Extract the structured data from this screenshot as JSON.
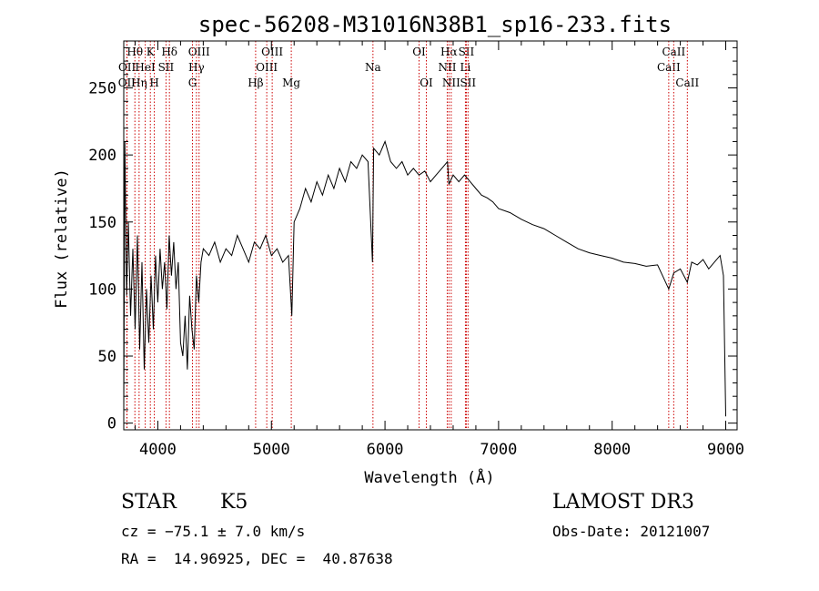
{
  "chart_data": {
    "type": "line",
    "title": "spec-56208-M31016N38B1_sp16-233.fits",
    "xlabel": "Wavelength (Å)",
    "ylabel": "Flux (relative)",
    "xlim": [
      3700,
      9100
    ],
    "ylim": [
      -5,
      285
    ],
    "x_ticks": [
      4000,
      5000,
      6000,
      7000,
      8000,
      9000
    ],
    "y_ticks": [
      0,
      50,
      100,
      150,
      200,
      250
    ],
    "grid": false,
    "line_color": "#000000",
    "marker_color": "#cc0000",
    "series": [
      {
        "x": [
          3700,
          3710,
          3725,
          3740,
          3760,
          3780,
          3800,
          3820,
          3840,
          3860,
          3880,
          3900,
          3920,
          3940,
          3960,
          3980,
          4000,
          4020,
          4040,
          4060,
          4080,
          4100,
          4120,
          4140,
          4160,
          4180,
          4200,
          4220,
          4240,
          4260,
          4280,
          4300,
          4320,
          4340,
          4360,
          4380,
          4400,
          4450,
          4500,
          4550,
          4600,
          4650,
          4700,
          4750,
          4800,
          4850,
          4900,
          4950,
          5000,
          5050,
          5100,
          5150,
          5180,
          5200,
          5250,
          5300,
          5350,
          5400,
          5450,
          5500,
          5550,
          5600,
          5650,
          5700,
          5750,
          5800,
          5850,
          5890,
          5900,
          5950,
          6000,
          6050,
          6100,
          6150,
          6200,
          6250,
          6300,
          6350,
          6400,
          6450,
          6500,
          6550,
          6563,
          6600,
          6650,
          6700,
          6750,
          6800,
          6850,
          6900,
          6950,
          7000,
          7100,
          7200,
          7300,
          7400,
          7500,
          7600,
          7700,
          7800,
          7900,
          8000,
          8100,
          8200,
          8300,
          8400,
          8498,
          8542,
          8600,
          8662,
          8700,
          8750,
          8800,
          8850,
          8900,
          8950,
          8980,
          9000
        ],
        "y": [
          10,
          210,
          95,
          150,
          80,
          130,
          70,
          140,
          55,
          120,
          40,
          100,
          60,
          110,
          70,
          125,
          90,
          130,
          100,
          120,
          85,
          140,
          110,
          135,
          100,
          120,
          60,
          50,
          80,
          40,
          95,
          70,
          55,
          110,
          90,
          120,
          130,
          125,
          135,
          120,
          130,
          125,
          140,
          130,
          120,
          135,
          130,
          140,
          125,
          130,
          120,
          125,
          80,
          150,
          160,
          175,
          165,
          180,
          170,
          185,
          175,
          190,
          180,
          195,
          190,
          200,
          195,
          120,
          205,
          200,
          210,
          195,
          190,
          195,
          185,
          190,
          185,
          188,
          180,
          185,
          190,
          195,
          178,
          185,
          180,
          185,
          180,
          175,
          170,
          168,
          165,
          160,
          157,
          152,
          148,
          145,
          140,
          135,
          130,
          127,
          125,
          123,
          120,
          119,
          117,
          118,
          100,
          112,
          115,
          105,
          120,
          118,
          122,
          115,
          120,
          125,
          110,
          5
        ]
      }
    ],
    "line_markers": [
      {
        "label": "OII",
        "wavelength": 3727,
        "row": 3
      },
      {
        "label": "OII",
        "wavelength": 3729,
        "row": 2
      },
      {
        "label": "Hθ",
        "wavelength": 3798,
        "row": 1
      },
      {
        "label": "Hη",
        "wavelength": 3835,
        "row": 3
      },
      {
        "label": "K",
        "wavelength": 3934,
        "row": 1
      },
      {
        "label": "HeI",
        "wavelength": 3889,
        "row": 2
      },
      {
        "label": "H",
        "wavelength": 3969,
        "row": 3
      },
      {
        "label": "SII",
        "wavelength": 4072,
        "row": 2
      },
      {
        "label": "Hδ",
        "wavelength": 4102,
        "row": 1
      },
      {
        "label": "Hγ",
        "wavelength": 4340,
        "row": 2
      },
      {
        "label": "OIII",
        "wavelength": 4363,
        "row": 1
      },
      {
        "label": "G",
        "wavelength": 4305,
        "row": 3
      },
      {
        "label": "Hβ",
        "wavelength": 4861,
        "row": 3
      },
      {
        "label": "OIII",
        "wavelength": 4959,
        "row": 2
      },
      {
        "label": "OIII",
        "wavelength": 5007,
        "row": 1
      },
      {
        "label": "Mg",
        "wavelength": 5175,
        "row": 3
      },
      {
        "label": "Na",
        "wavelength": 5894,
        "row": 2
      },
      {
        "label": "OI",
        "wavelength": 6300,
        "row": 1
      },
      {
        "label": "OI",
        "wavelength": 6364,
        "row": 3
      },
      {
        "label": "NII",
        "wavelength": 6548,
        "row": 2
      },
      {
        "label": "Hα",
        "wavelength": 6563,
        "row": 1
      },
      {
        "label": "NII",
        "wavelength": 6583,
        "row": 3
      },
      {
        "label": "Li",
        "wavelength": 6708,
        "row": 2
      },
      {
        "label": "SII",
        "wavelength": 6716,
        "row": 1
      },
      {
        "label": "SII",
        "wavelength": 6731,
        "row": 3
      },
      {
        "label": "CaII",
        "wavelength": 8498,
        "row": 2
      },
      {
        "label": "CaII",
        "wavelength": 8542,
        "row": 1
      },
      {
        "label": "CaII",
        "wavelength": 8662,
        "row": 3
      }
    ]
  },
  "info": {
    "object_class": "STAR",
    "subclass": "K5",
    "survey": "LAMOST DR3",
    "cz": "cz = −75.1 ± 7.0 km/s",
    "obs_date": "Obs-Date: 20121007",
    "coords": "RA =  14.96925, DEC =  40.87638"
  }
}
